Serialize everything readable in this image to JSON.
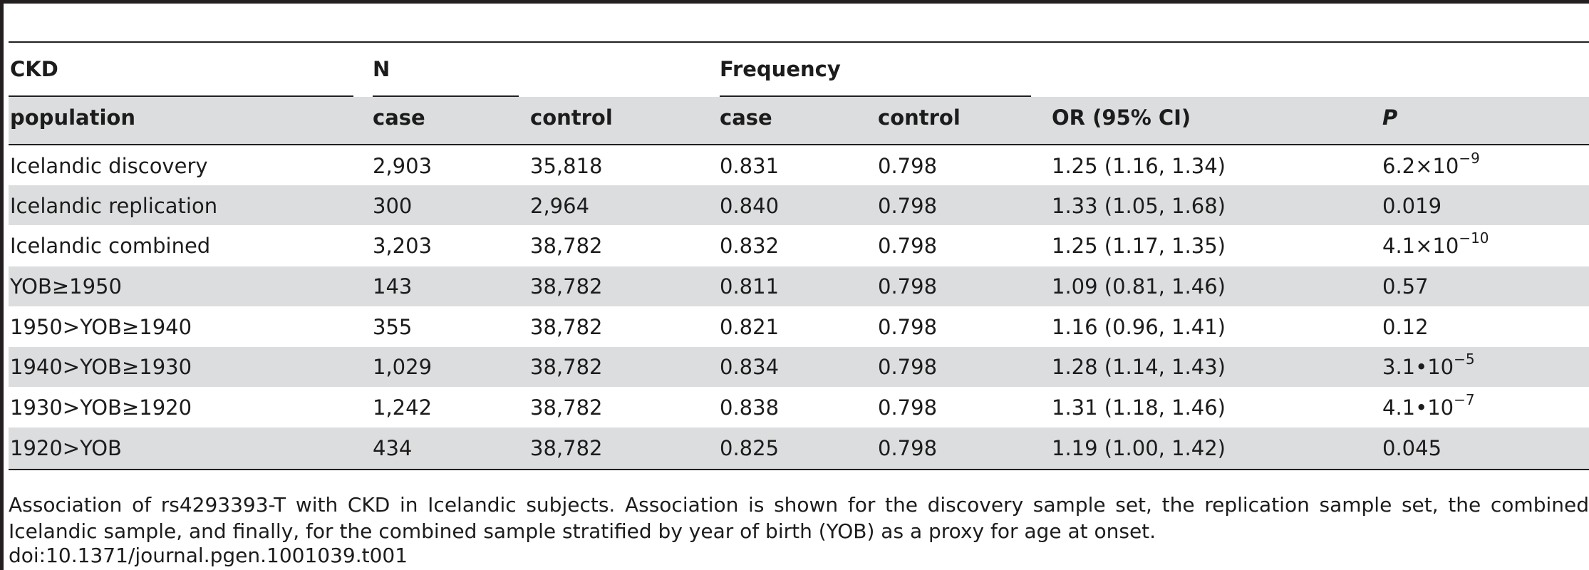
{
  "table": {
    "group_headers": {
      "ckd": "CKD",
      "n": "N",
      "frequency": "Frequency"
    },
    "columns": [
      "population",
      "case",
      "control",
      "case",
      "control",
      "OR (95% CI)",
      "P"
    ],
    "rows": [
      {
        "population": "Icelandic discovery",
        "n_case": "2,903",
        "n_control": "35,818",
        "f_case": "0.831",
        "f_control": "0.798",
        "or": "1.25 (1.16, 1.34)",
        "p_base": "6.2",
        "p_sep": "×10",
        "p_exp": "−9"
      },
      {
        "population": "Icelandic replication",
        "n_case": "300",
        "n_control": "2,964",
        "f_case": "0.840",
        "f_control": "0.798",
        "or": "1.33 (1.05, 1.68)",
        "p_base": "0.019",
        "p_sep": "",
        "p_exp": ""
      },
      {
        "population": "Icelandic combined",
        "n_case": "3,203",
        "n_control": "38,782",
        "f_case": "0.832",
        "f_control": "0.798",
        "or": "1.25 (1.17, 1.35)",
        "p_base": "4.1",
        "p_sep": "×10",
        "p_exp": "−10"
      },
      {
        "population": "YOB≥1950",
        "n_case": "143",
        "n_control": "38,782",
        "f_case": "0.811",
        "f_control": "0.798",
        "or": "1.09 (0.81, 1.46)",
        "p_base": "0.57",
        "p_sep": "",
        "p_exp": ""
      },
      {
        "population": "1950>YOB≥1940",
        "n_case": "355",
        "n_control": "38,782",
        "f_case": "0.821",
        "f_control": "0.798",
        "or": "1.16 (0.96, 1.41)",
        "p_base": "0.12",
        "p_sep": "",
        "p_exp": ""
      },
      {
        "population": "1940>YOB≥1930",
        "n_case": "1,029",
        "n_control": "38,782",
        "f_case": "0.834",
        "f_control": "0.798",
        "or": "1.28 (1.14, 1.43)",
        "p_base": "3.1",
        "p_sep": "•10",
        "p_exp": "−5"
      },
      {
        "population": "1930>YOB≥1920",
        "n_case": "1,242",
        "n_control": "38,782",
        "f_case": "0.838",
        "f_control": "0.798",
        "or": "1.31 (1.18, 1.46)",
        "p_base": "4.1",
        "p_sep": "•10",
        "p_exp": "−7"
      },
      {
        "population": "1920>YOB",
        "n_case": "434",
        "n_control": "38,782",
        "f_case": "0.825",
        "f_control": "0.798",
        "or": "1.19 (1.00, 1.42)",
        "p_base": "0.045",
        "p_sep": "",
        "p_exp": ""
      }
    ]
  },
  "caption": "Association of rs4293393-T with CKD in Icelandic subjects. Association is shown for the discovery sample set, the replication sample set, the combined Icelandic sample, and finally, for the combined sample stratified by year of birth (YOB) as a proxy for age at onset.",
  "doi": "doi:10.1371/journal.pgen.1001039.t001"
}
